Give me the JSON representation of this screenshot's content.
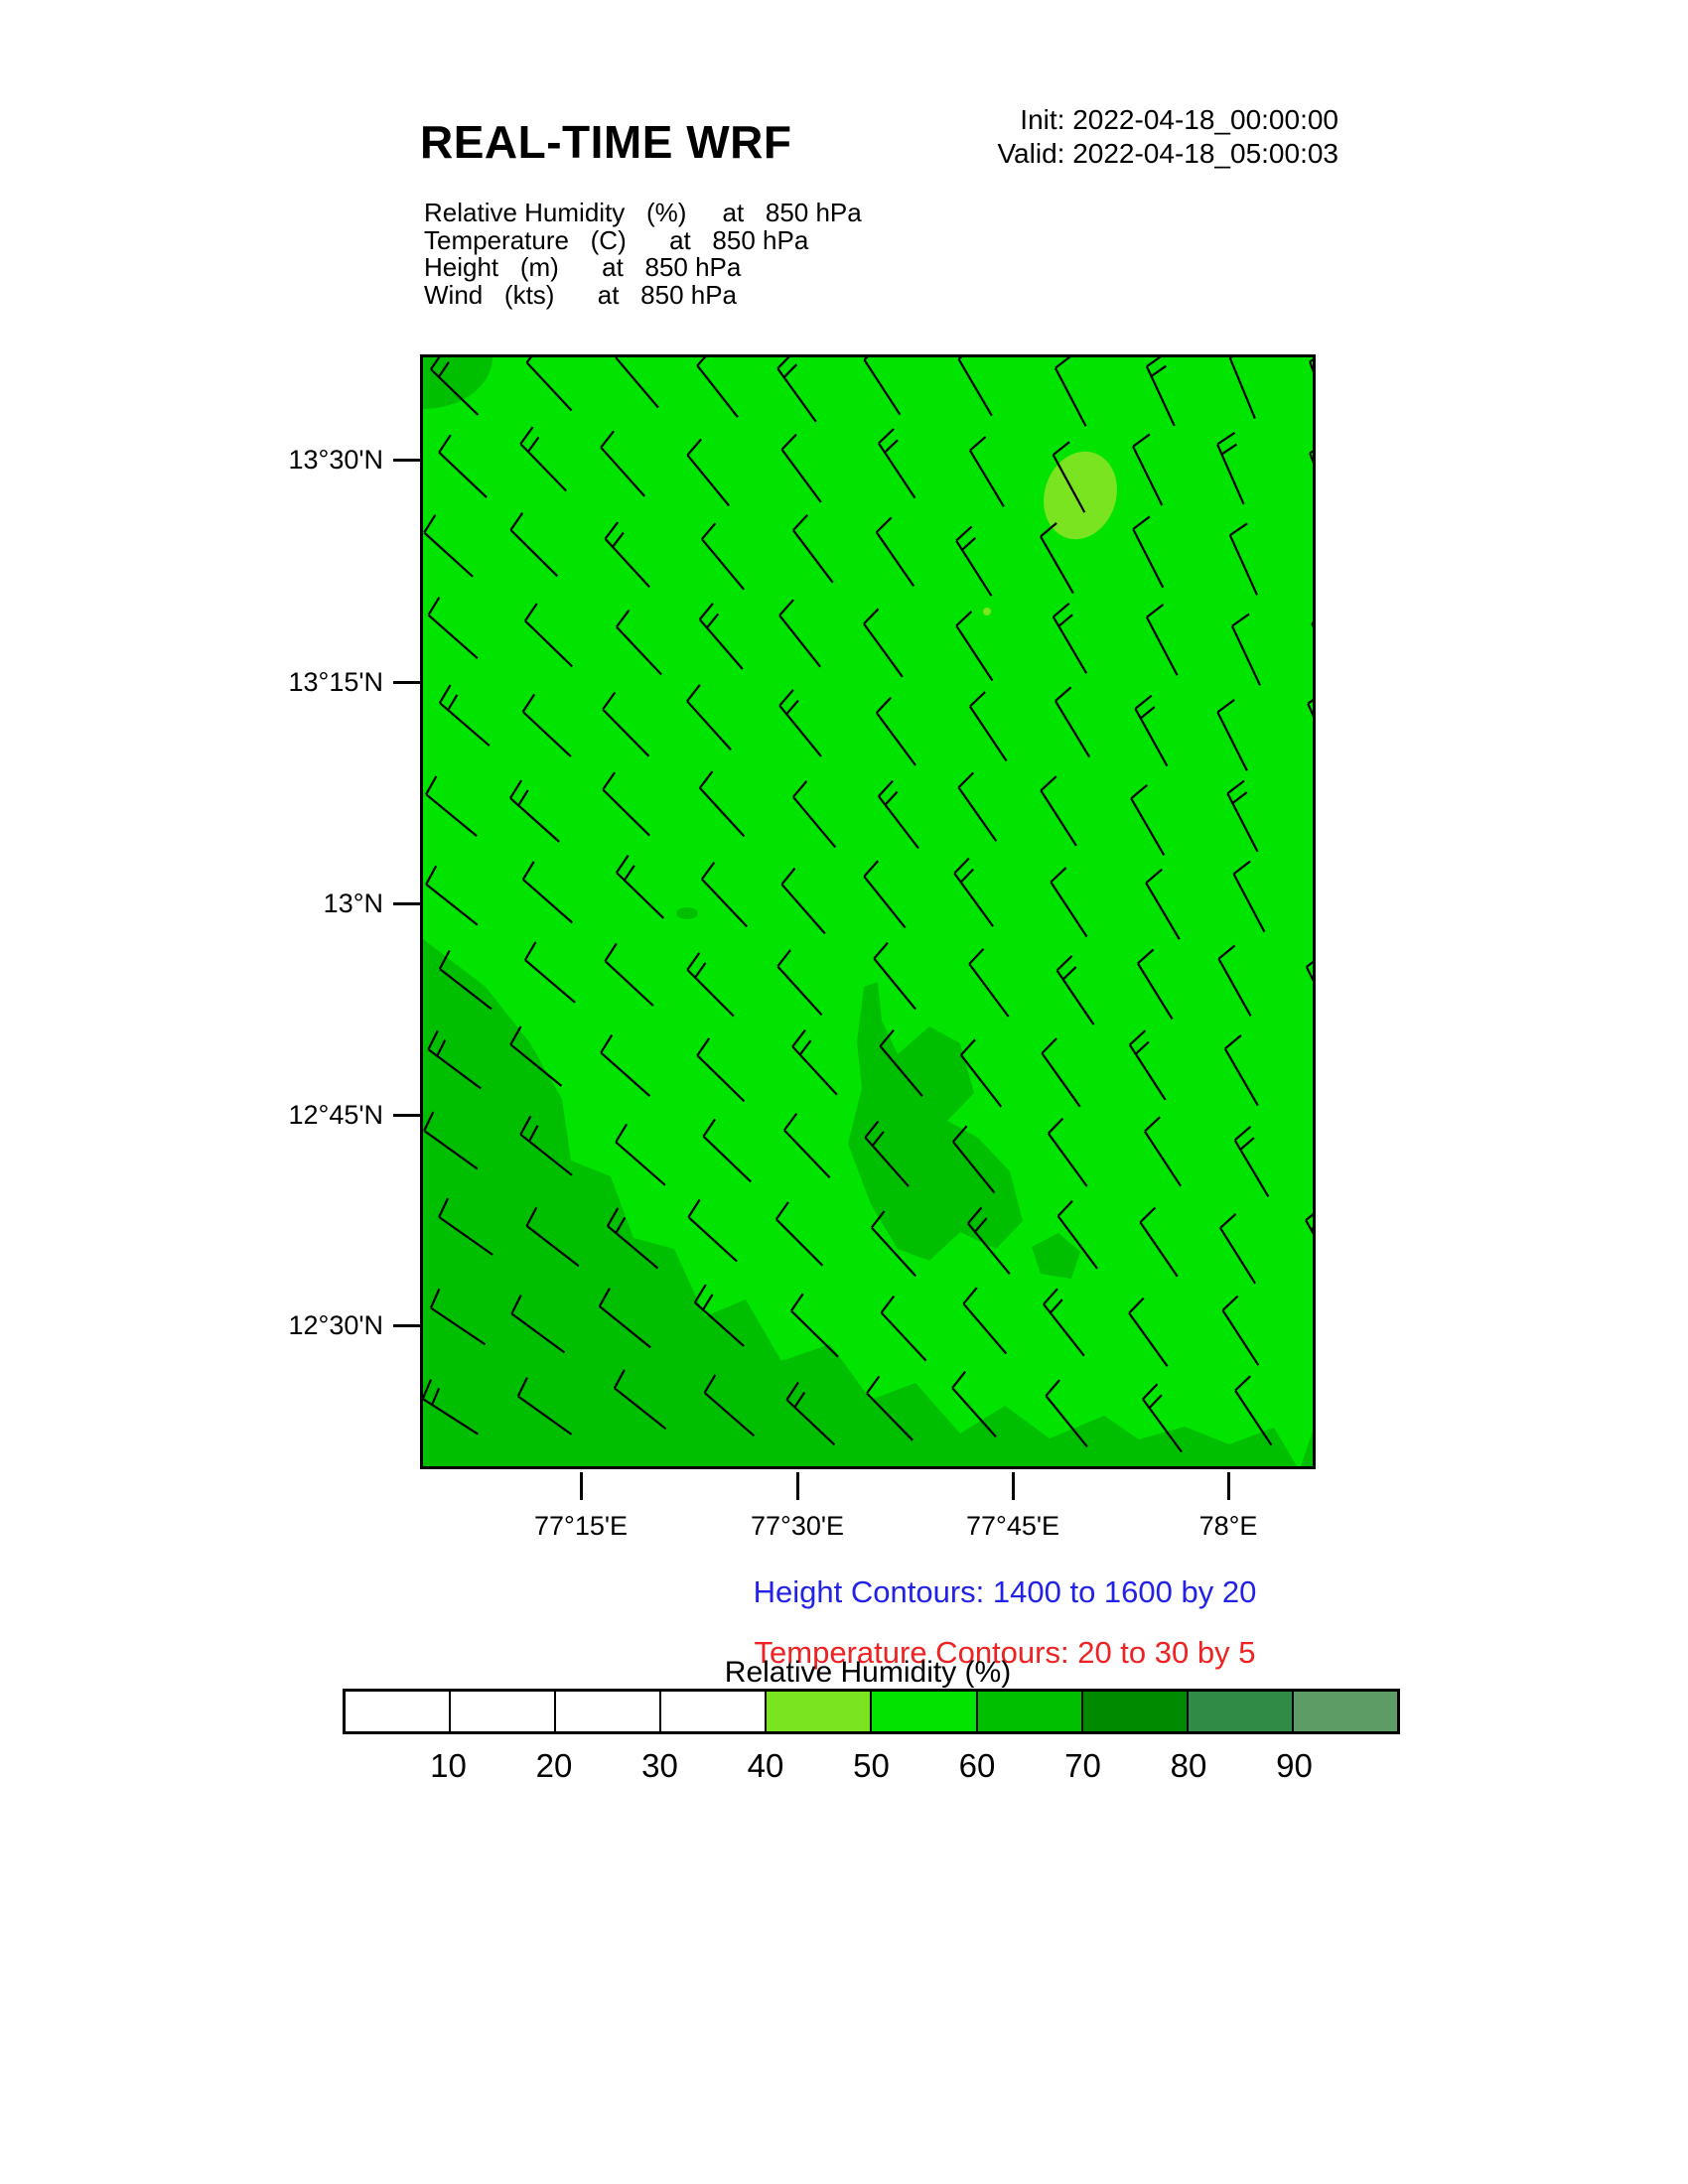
{
  "header": {
    "title": "REAL-TIME WRF",
    "init": "Init: 2022-04-18_00:00:00",
    "valid": "Valid: 2022-04-18_05:00:03"
  },
  "fields": [
    "Relative Humidity   (%)     at   850 hPa",
    "Temperature   (C)      at   850 hPa",
    "Height   (m)      at   850 hPa",
    "Wind   (kts)      at   850 hPa"
  ],
  "map": {
    "lat_tick_labels": [
      "13°30'N",
      "13°15'N",
      "13°N",
      "12°45'N",
      "12°30'N"
    ],
    "lon_tick_labels": [
      "77°15'E",
      "77°30'E",
      "77°45'E",
      "78°E"
    ]
  },
  "annotations": {
    "height_contours": "Height Contours: 1400 to 1600 by 20",
    "temperature_contours": "Temperature Contours: 20 to 30 by 5",
    "colorbar_title": "Relative Humidity  (%)"
  },
  "colors": {
    "height_contour_text": "#2222E6",
    "temperature_contour_text": "#EE2222",
    "rh_40_50": "#79E41F",
    "rh_50_60": "#00E400",
    "rh_60_70": "#00BE00",
    "rh_70_80": "#008A00",
    "rh_80_90": "#2E8C46",
    "rh_90_plus": "#5D9C64",
    "rh_below_40": "#FFFFFF",
    "barb_color": "#000000"
  },
  "colorbar": {
    "labels": [
      "10",
      "20",
      "30",
      "40",
      "50",
      "60",
      "70",
      "80",
      "90"
    ],
    "cell_colors": [
      "#FFFFFF",
      "#FFFFFF",
      "#FFFFFF",
      "#FFFFFF",
      "#79E41F",
      "#00E400",
      "#00BE00",
      "#008A00",
      "#2E8C46",
      "#5D9C64"
    ]
  },
  "chart_data": {
    "type": "heatmap",
    "description": "WRF model forecast map: shaded relative humidity with wind barbs at 850 hPa over southern India (Bengaluru region)",
    "title": "REAL-TIME WRF",
    "init_time": "2022-04-18_00:00:00",
    "valid_time": "2022-04-18_05:00:03",
    "level_hPa": 850,
    "variables": [
      {
        "name": "Relative Humidity",
        "units": "%",
        "level": "850 hPa"
      },
      {
        "name": "Temperature",
        "units": "C",
        "level": "850 hPa"
      },
      {
        "name": "Height",
        "units": "m",
        "level": "850 hPa"
      },
      {
        "name": "Wind",
        "units": "kts",
        "level": "850 hPa"
      }
    ],
    "x_axis": {
      "label": "longitude",
      "ticks": [
        "77°15'E",
        "77°30'E",
        "77°45'E",
        "78°E"
      ]
    },
    "y_axis": {
      "label": "latitude",
      "ticks": [
        "13°30'N",
        "13°15'N",
        "13°N",
        "12°45'N",
        "12°30'N"
      ]
    },
    "colorbar": {
      "title": "Relative Humidity  (%)",
      "boundary_labels": [
        10,
        20,
        30,
        40,
        50,
        60,
        70,
        80,
        90
      ],
      "cell_colors": [
        "#FFFFFF",
        "#FFFFFF",
        "#FFFFFF",
        "#FFFFFF",
        "#79E41F",
        "#00E400",
        "#00BE00",
        "#008A00",
        "#2E8C46",
        "#5D9C64"
      ]
    },
    "height_contours": {
      "from": 1400,
      "to": 1600,
      "by": 20,
      "note": "no contours visible inside domain"
    },
    "temperature_contours": {
      "from": 20,
      "to": 30,
      "by": 5,
      "note": "no contours visible inside domain"
    },
    "rh_field_summary": [
      {
        "value_range": "50-60 %",
        "region": "most of domain (bright green)"
      },
      {
        "value_range": "60-70 %",
        "region": "southwest half below a NW-SE wavy boundary, small NW corner patch, small blobs near center-south and SE corner"
      },
      {
        "value_range": "40-50 %",
        "region": "small elliptical pocket in the north-northeast"
      }
    ],
    "wind_barbs": {
      "direction": "from north to northeast (shafts point up-left)",
      "speed_kts": "5-10 (single half/full barb)",
      "grid": "regular ~11 x 13 station grid"
    }
  }
}
